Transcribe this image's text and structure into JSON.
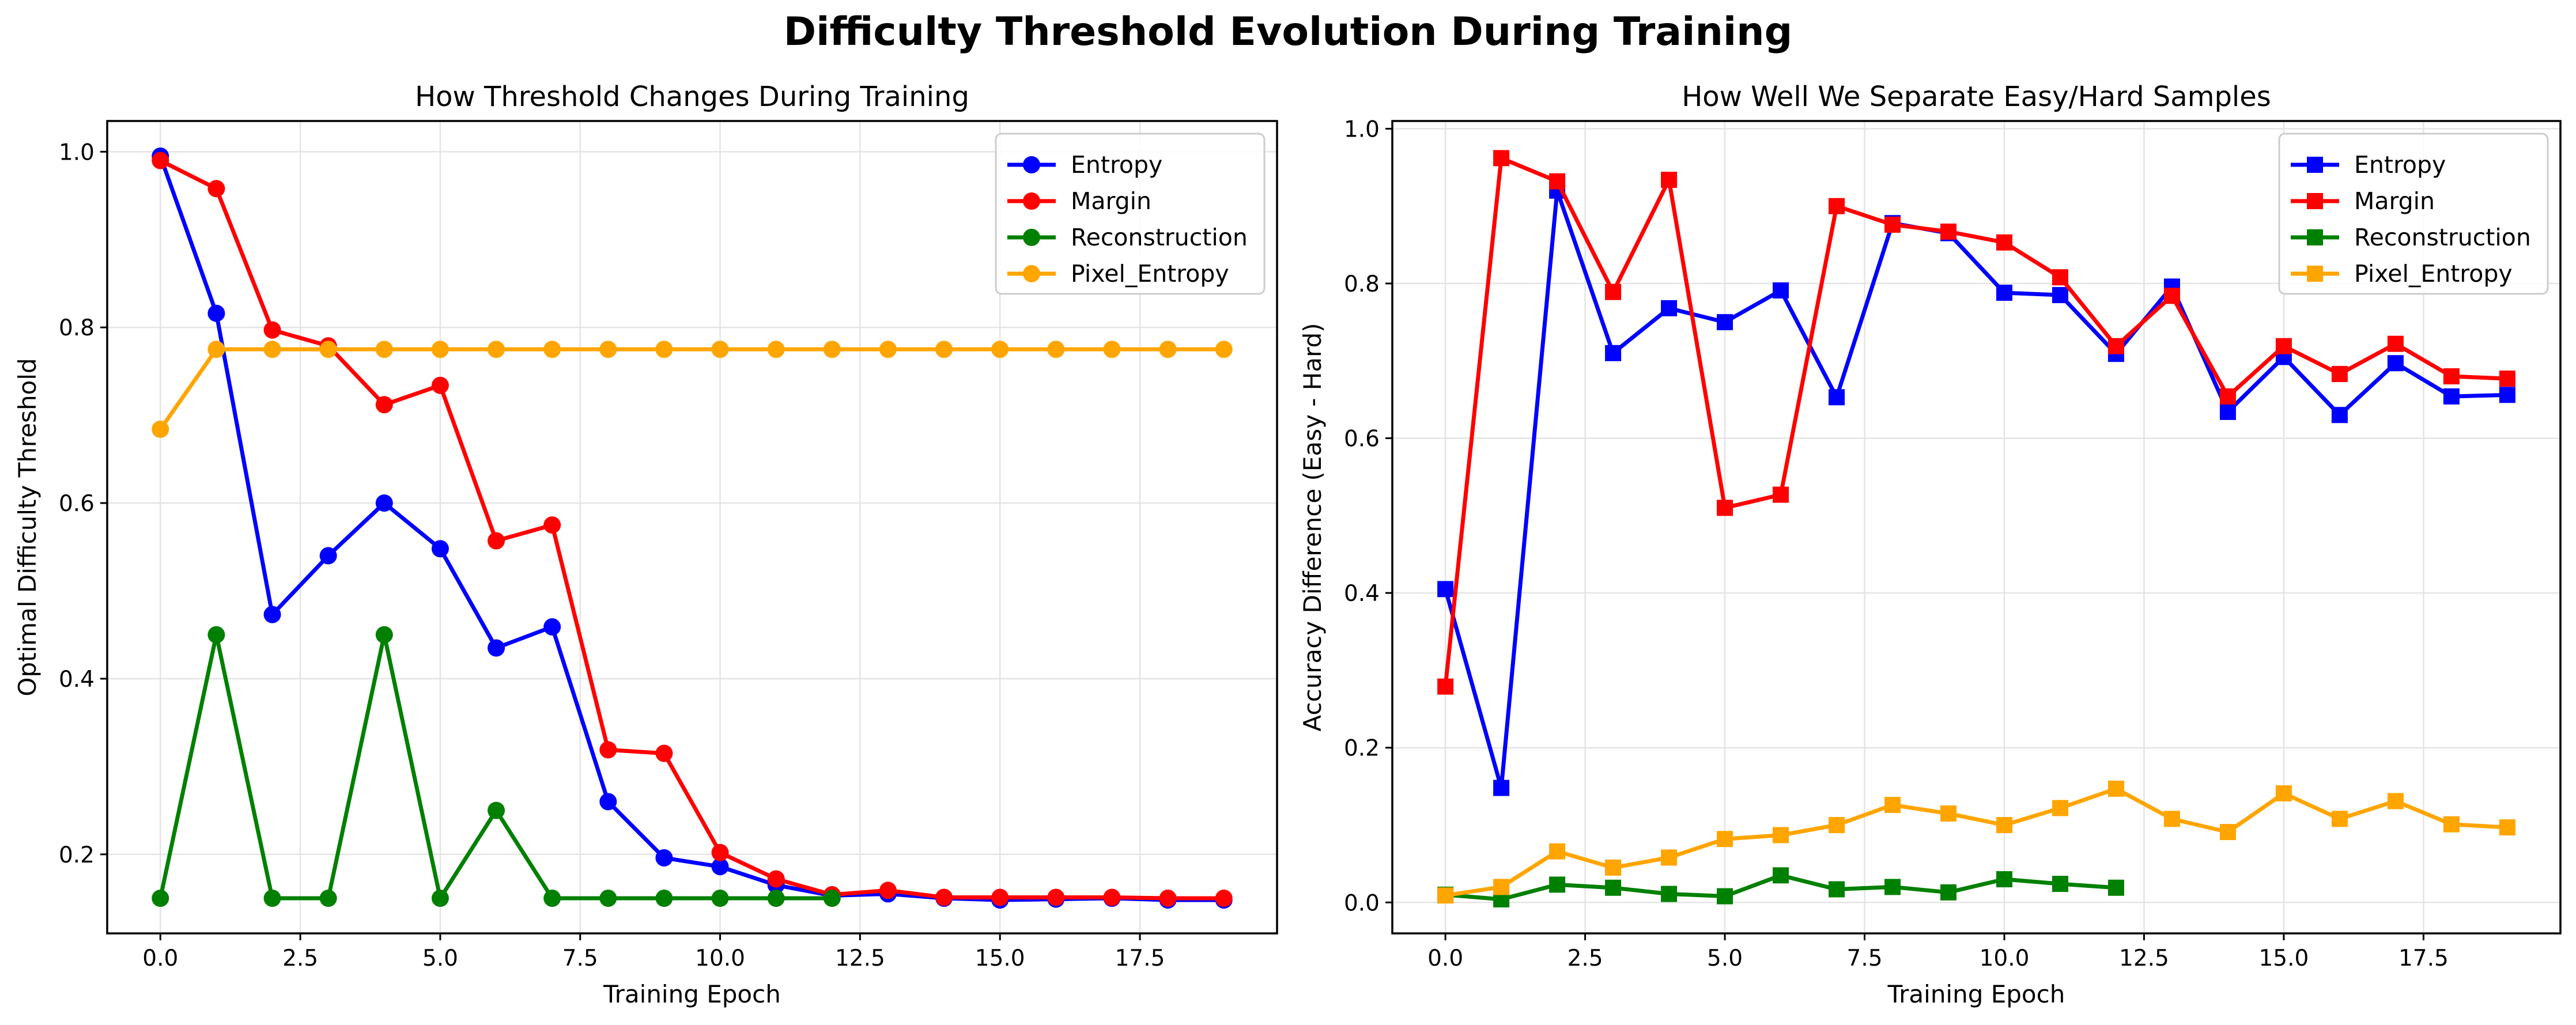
{
  "figure": {
    "suptitle": "Difficulty Threshold Evolution During Training"
  },
  "colors": {
    "entropy": "#0000ff",
    "margin": "#ff0000",
    "reconstruction": "#008000",
    "pixel_entropy": "#ffa500"
  },
  "chart_data": [
    {
      "type": "line",
      "title": "How Threshold Changes During Training",
      "xlabel": "Training Epoch",
      "ylabel": "Optimal Difficulty Threshold",
      "xlim": [
        -0.95,
        19.95
      ],
      "ylim": [
        0.11,
        1.035
      ],
      "xticks": [
        0,
        2.5,
        5,
        7.5,
        10,
        12.5,
        15,
        17.5
      ],
      "xtick_labels": [
        "0.0",
        "2.5",
        "5.0",
        "7.5",
        "10.0",
        "12.5",
        "15.0",
        "17.5"
      ],
      "yticks": [
        0.2,
        0.4,
        0.6,
        0.8,
        1.0
      ],
      "ytick_labels": [
        "0.2",
        "0.4",
        "0.6",
        "0.8",
        "1.0"
      ],
      "grid": true,
      "marker": "circle",
      "legend_position": "upper-right",
      "series": [
        {
          "name": "Entropy",
          "color": "#0000ff",
          "x": [
            0,
            1,
            2,
            3,
            4,
            5,
            6,
            7,
            8,
            9,
            10,
            11,
            12,
            13,
            14,
            15,
            16,
            17,
            18,
            19
          ],
          "y": [
            0.995,
            0.816,
            0.473,
            0.54,
            0.6,
            0.548,
            0.435,
            0.459,
            0.26,
            0.196,
            0.186,
            0.165,
            0.153,
            0.155,
            0.15,
            0.148,
            0.149,
            0.15,
            0.148,
            0.148
          ]
        },
        {
          "name": "Margin",
          "color": "#ff0000",
          "x": [
            0,
            1,
            2,
            3,
            4,
            5,
            6,
            7,
            8,
            9,
            10,
            11,
            12,
            13,
            14,
            15,
            16,
            17,
            18,
            19
          ],
          "y": [
            0.99,
            0.958,
            0.797,
            0.779,
            0.712,
            0.734,
            0.557,
            0.575,
            0.319,
            0.315,
            0.202,
            0.172,
            0.154,
            0.159,
            0.151,
            0.151,
            0.151,
            0.151,
            0.15,
            0.15
          ]
        },
        {
          "name": "Reconstruction",
          "color": "#008000",
          "x": [
            0,
            1,
            2,
            3,
            4,
            5,
            6,
            7,
            8,
            9,
            10,
            11,
            12
          ],
          "y": [
            0.15,
            0.45,
            0.15,
            0.15,
            0.45,
            0.15,
            0.25,
            0.15,
            0.15,
            0.15,
            0.15,
            0.15,
            0.15
          ]
        },
        {
          "name": "Pixel_Entropy",
          "color": "#ffa500",
          "x": [
            0,
            1,
            2,
            3,
            4,
            5,
            6,
            7,
            8,
            9,
            10,
            11,
            12,
            13,
            14,
            15,
            16,
            17,
            18,
            19
          ],
          "y": [
            0.684,
            0.775,
            0.775,
            0.775,
            0.775,
            0.775,
            0.775,
            0.775,
            0.775,
            0.775,
            0.775,
            0.775,
            0.775,
            0.775,
            0.775,
            0.775,
            0.775,
            0.775,
            0.775,
            0.775
          ]
        }
      ]
    },
    {
      "type": "line",
      "title": "How Well We Separate Easy/Hard Samples",
      "xlabel": "Training Epoch",
      "ylabel": "Accuracy Difference (Easy - Hard)",
      "xlim": [
        -0.95,
        19.95
      ],
      "ylim": [
        -0.04,
        1.01
      ],
      "xticks": [
        0,
        2.5,
        5,
        7.5,
        10,
        12.5,
        15,
        17.5
      ],
      "xtick_labels": [
        "0.0",
        "2.5",
        "5.0",
        "7.5",
        "10.0",
        "12.5",
        "15.0",
        "17.5"
      ],
      "yticks": [
        0,
        0.2,
        0.4,
        0.6,
        0.8,
        1.0
      ],
      "ytick_labels": [
        "0.0",
        "0.2",
        "0.4",
        "0.6",
        "0.8",
        "1.0"
      ],
      "grid": true,
      "marker": "square",
      "legend_position": "upper-right",
      "series": [
        {
          "name": "Entropy",
          "color": "#0000ff",
          "x": [
            0,
            1,
            2,
            3,
            4,
            5,
            6,
            7,
            8,
            9,
            10,
            11,
            12,
            13,
            14,
            15,
            16,
            17,
            18,
            19
          ],
          "y": [
            0.405,
            0.148,
            0.92,
            0.71,
            0.768,
            0.75,
            0.791,
            0.653,
            0.878,
            0.865,
            0.788,
            0.785,
            0.709,
            0.796,
            0.634,
            0.705,
            0.63,
            0.697,
            0.654,
            0.656
          ]
        },
        {
          "name": "Margin",
          "color": "#ff0000",
          "x": [
            0,
            1,
            2,
            3,
            4,
            5,
            6,
            7,
            8,
            9,
            10,
            11,
            12,
            13,
            14,
            15,
            16,
            17,
            18,
            19
          ],
          "y": [
            0.279,
            0.962,
            0.932,
            0.789,
            0.934,
            0.51,
            0.527,
            0.9,
            0.876,
            0.867,
            0.853,
            0.808,
            0.719,
            0.784,
            0.654,
            0.719,
            0.683,
            0.722,
            0.68,
            0.677
          ]
        },
        {
          "name": "Reconstruction",
          "color": "#008000",
          "x": [
            0,
            1,
            2,
            3,
            4,
            5,
            6,
            7,
            8,
            9,
            10,
            11,
            12
          ],
          "y": [
            0.01,
            0.004,
            0.023,
            0.019,
            0.011,
            0.008,
            0.035,
            0.017,
            0.02,
            0.013,
            0.03,
            0.024,
            0.019
          ]
        },
        {
          "name": "Pixel_Entropy",
          "color": "#ffa500",
          "x": [
            0,
            1,
            2,
            3,
            4,
            5,
            6,
            7,
            8,
            9,
            10,
            11,
            12,
            13,
            14,
            15,
            16,
            17,
            18,
            19
          ],
          "y": [
            0.009,
            0.02,
            0.066,
            0.045,
            0.058,
            0.082,
            0.087,
            0.1,
            0.126,
            0.115,
            0.1,
            0.122,
            0.147,
            0.108,
            0.091,
            0.141,
            0.108,
            0.131,
            0.101,
            0.097
          ]
        }
      ]
    }
  ]
}
